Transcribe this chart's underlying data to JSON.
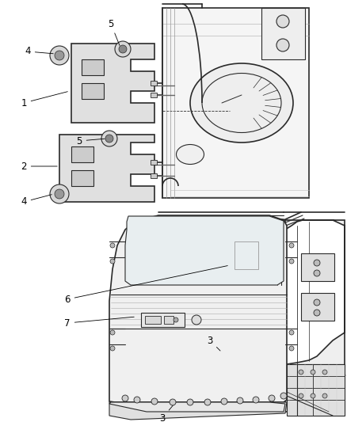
{
  "bg_color": "#ffffff",
  "line_color": "#2a2a2a",
  "label_color": "#000000",
  "fig_width": 4.38,
  "fig_height": 5.33,
  "dpi": 100,
  "label_fontsize": 8.5
}
